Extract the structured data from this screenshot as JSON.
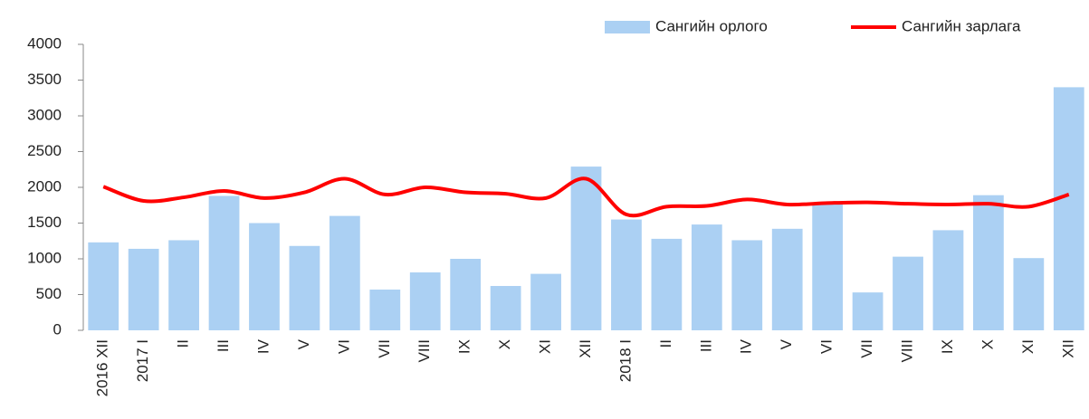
{
  "chart_data": {
    "type": "bar_line",
    "categories": [
      "2016 XII",
      "2017 I",
      "II",
      "III",
      "IV",
      "V",
      "VI",
      "VII",
      "VIII",
      "IX",
      "X",
      "XI",
      "XII",
      "2018 I",
      "II",
      "III",
      "IV",
      "V",
      "VI",
      "VII",
      "VIII",
      "IX",
      "X",
      "XI",
      "XII"
    ],
    "series": [
      {
        "name": "Сангийн орлого",
        "type": "bar",
        "color": "#abd0f3",
        "values": [
          1230,
          1140,
          1260,
          1880,
          1500,
          1180,
          1600,
          570,
          810,
          1000,
          620,
          790,
          2290,
          1550,
          1280,
          1480,
          1260,
          1420,
          1760,
          530,
          1030,
          1400,
          1890,
          1010,
          3400
        ]
      },
      {
        "name": "Сангийн зарлага",
        "type": "line",
        "color": "#ff0000",
        "values": [
          2010,
          1810,
          1860,
          1950,
          1850,
          1930,
          2120,
          1900,
          2000,
          1930,
          1910,
          1850,
          2120,
          1620,
          1730,
          1740,
          1830,
          1760,
          1780,
          1790,
          1770,
          1760,
          1770,
          1730,
          1900
        ]
      }
    ],
    "ylim": [
      0,
      4000
    ],
    "yticks": [
      0,
      500,
      1000,
      1500,
      2000,
      2500,
      3000,
      3500,
      4000
    ],
    "grid": false,
    "legend": "top-right"
  }
}
